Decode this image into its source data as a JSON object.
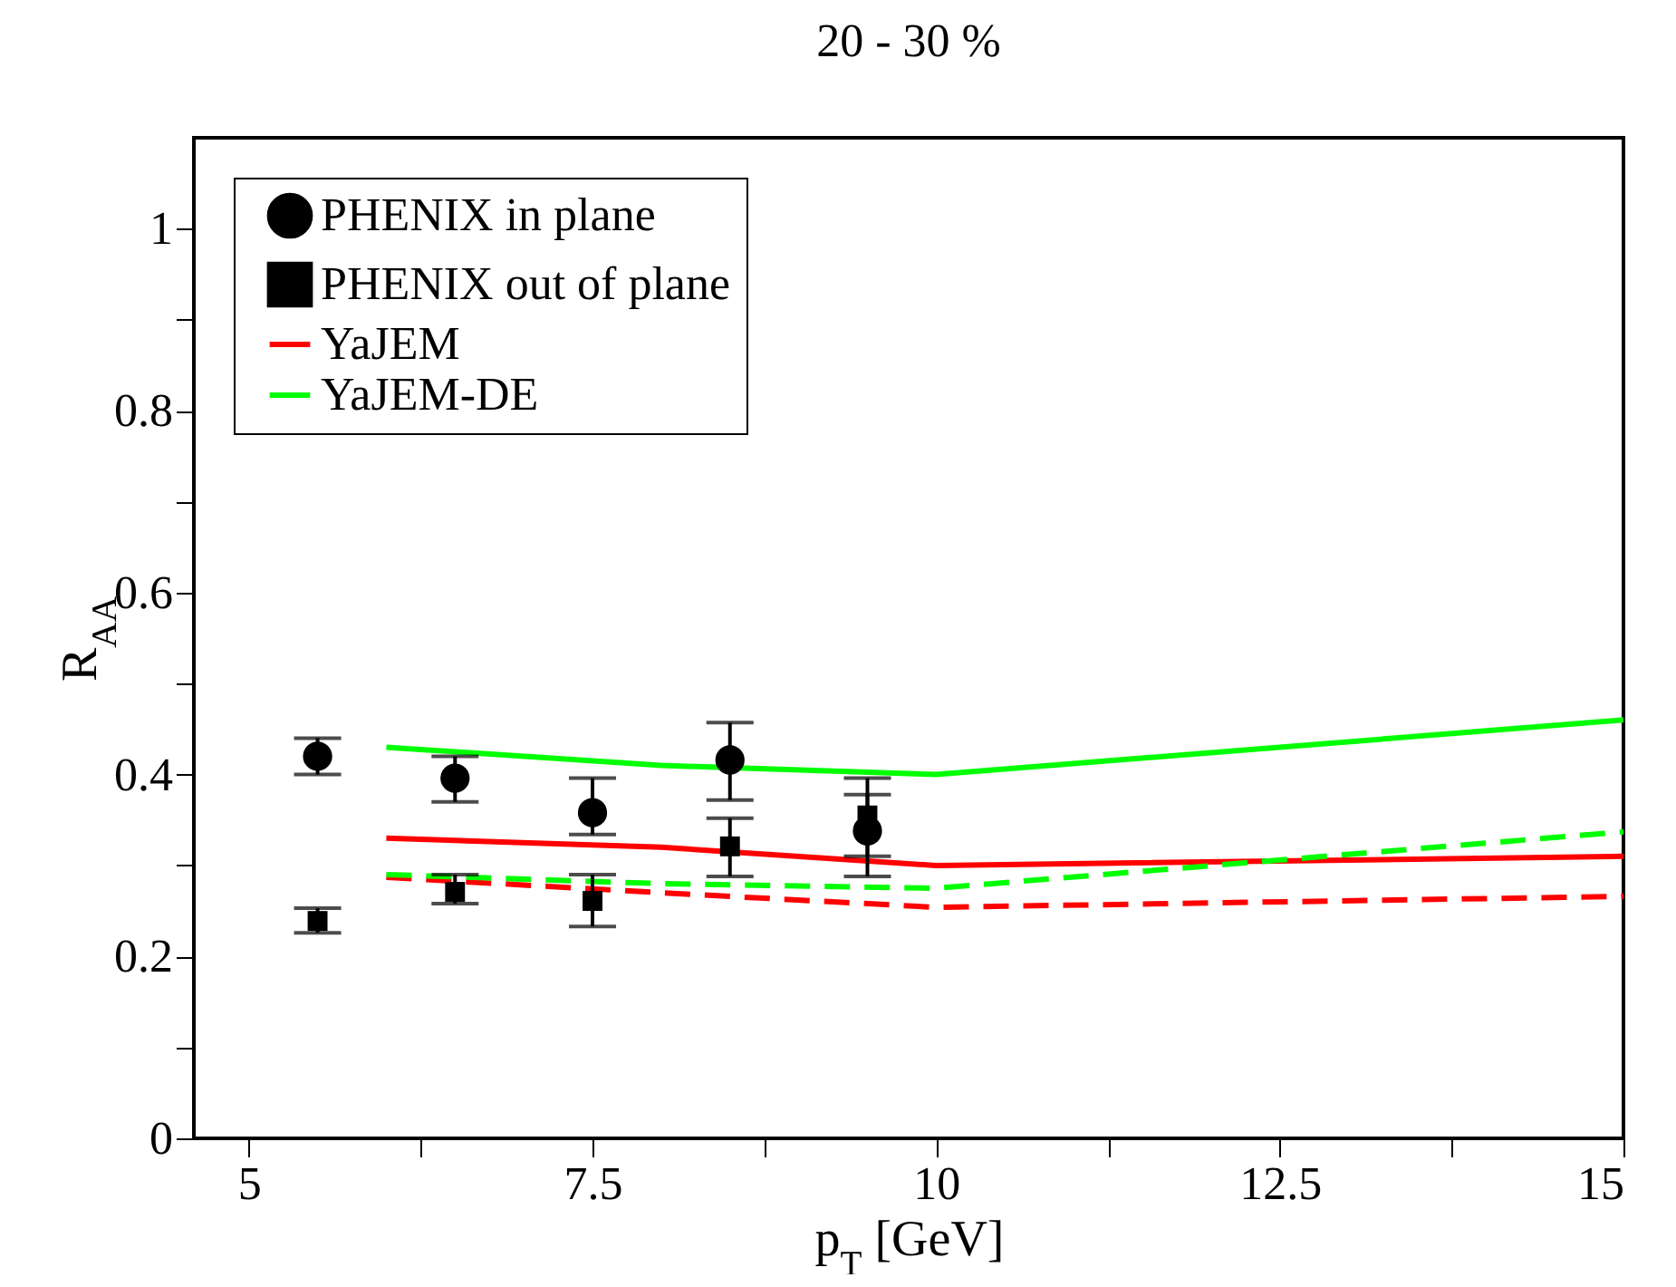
{
  "chart_data": {
    "type": "scatter",
    "title": "20 - 30 %",
    "xlabel": "p$_{T}$ [GeV]",
    "ylabel": "R$_{AA}$",
    "xlim": [
      4.6,
      15
    ],
    "ylim": [
      0,
      1.1
    ],
    "xticks": [
      5,
      {
        "value": 6.25,
        "label": null
      },
      7.5,
      {
        "value": 8.75,
        "label": null
      },
      10,
      {
        "value": 11.25,
        "label": null
      },
      12.5,
      {
        "value": 13.75,
        "label": null
      },
      15
    ],
    "yticks": [
      0,
      {
        "value": 0.1,
        "label": null
      },
      0.2,
      {
        "value": 0.3,
        "label": null
      },
      0.4,
      {
        "value": 0.5,
        "label": null
      },
      0.6,
      {
        "value": 0.7,
        "label": null
      },
      0.8,
      {
        "value": 0.9,
        "label": null
      },
      1
    ],
    "grid": false,
    "legend": "top left",
    "series": [
      {
        "name": "PHENIX in plane",
        "marker": "circle",
        "color": "#000000",
        "x": [
          5.5,
          6.5,
          7.5,
          8.5,
          9.5
        ],
        "values": [
          0.42,
          0.396,
          0.358,
          0.416,
          0.338
        ],
        "errors": [
          [
            0.4,
            0.44
          ],
          [
            0.37,
            0.42
          ],
          [
            0.334,
            0.396
          ],
          [
            0.372,
            0.457
          ],
          [
            0.288,
            0.396
          ]
        ]
      },
      {
        "name": "PHENIX out of plane",
        "marker": "square",
        "color": "#000000",
        "x": [
          5.5,
          6.5,
          7.5,
          8.5,
          9.5
        ],
        "values": [
          0.239,
          0.271,
          0.261,
          0.321,
          0.355
        ],
        "errors": [
          [
            0.226,
            0.253
          ],
          [
            0.258,
            0.29
          ],
          [
            0.233,
            0.29
          ],
          [
            0.288,
            0.352
          ],
          [
            0.31,
            0.378
          ]
        ]
      },
      {
        "name": "YaJEM",
        "type": "line",
        "line_style": "solid",
        "color": "#ff0000",
        "x": [
          6,
          8,
          10,
          15
        ],
        "values": [
          0.33,
          0.32,
          0.3,
          0.31
        ]
      },
      {
        "name": "YaJEM-DE",
        "type": "line",
        "line_style": "solid",
        "color": "#00ff00",
        "x": [
          6,
          8,
          10,
          15
        ],
        "values": [
          0.43,
          0.41,
          0.4,
          0.46
        ]
      },
      {
        "type": "line",
        "line_style": "dashed",
        "color": "#ff0000",
        "x": [
          6,
          8,
          10,
          15
        ],
        "values": [
          0.287,
          0.27,
          0.254,
          0.266
        ]
      },
      {
        "type": "line",
        "line_style": "dashed",
        "color": "#00ff00",
        "x": [
          6,
          8,
          10,
          15
        ],
        "values": [
          0.29,
          0.28,
          0.275,
          0.337
        ]
      }
    ]
  }
}
